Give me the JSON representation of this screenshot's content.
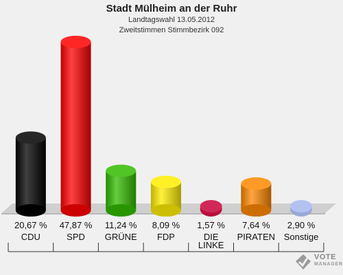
{
  "header": {
    "title": "Stadt Mülheim an der Ruhr",
    "subtitle1": "Landtagswahl 13.05.2012",
    "subtitle2": "Zweitstimmen Stimmbezirk 092"
  },
  "logo": {
    "line1": "VOTE",
    "line2": "MANAGER",
    "icon": "checkmark-ballot-icon"
  },
  "chart_data": {
    "type": "bar",
    "title": "Stadt Mülheim an der Ruhr",
    "categories": [
      "CDU",
      "SPD",
      "GRÜNE",
      "FDP",
      "DIE LINKE",
      "PIRATEN",
      "Sonstige"
    ],
    "category_lines": [
      [
        "CDU"
      ],
      [
        "SPD"
      ],
      [
        "GRÜNE"
      ],
      [
        "FDP"
      ],
      [
        "DIE",
        "LINKE"
      ],
      [
        "PIRATEN"
      ],
      [
        "Sonstige"
      ]
    ],
    "values": [
      20.67,
      47.87,
      11.24,
      8.09,
      1.57,
      7.64,
      2.9
    ],
    "value_labels": [
      "20,67 %",
      "47,87 %",
      "11,24 %",
      "8,09 %",
      "1,57 %",
      "7,64 %",
      "2,90 %"
    ],
    "colors": [
      "#000000",
      "#ff0000",
      "#33bb00",
      "#ffee00",
      "#cc1144",
      "#ff8800",
      "#aabbee"
    ],
    "ylim": [
      0,
      47.87
    ],
    "grid": false
  }
}
